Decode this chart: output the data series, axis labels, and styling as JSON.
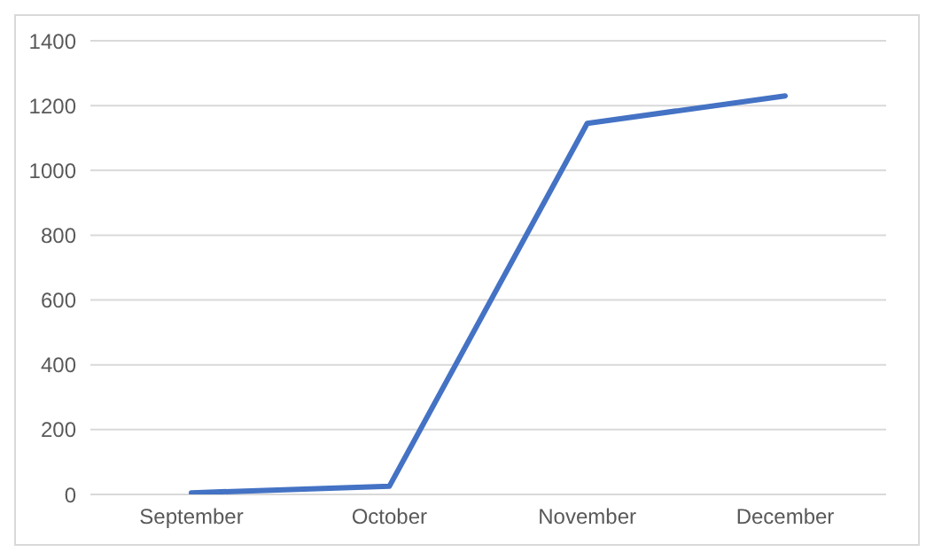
{
  "chart_data": {
    "type": "line",
    "categories": [
      "September",
      "October",
      "November",
      "December"
    ],
    "series": [
      {
        "color": "#4472c4",
        "values": [
          5,
          25,
          1145,
          1230
        ]
      }
    ],
    "ylim": [
      0,
      1400
    ],
    "yticks": [
      0,
      200,
      400,
      600,
      800,
      1000,
      1200,
      1400
    ],
    "grid": "y",
    "marker": "none",
    "line_style": "solid"
  }
}
